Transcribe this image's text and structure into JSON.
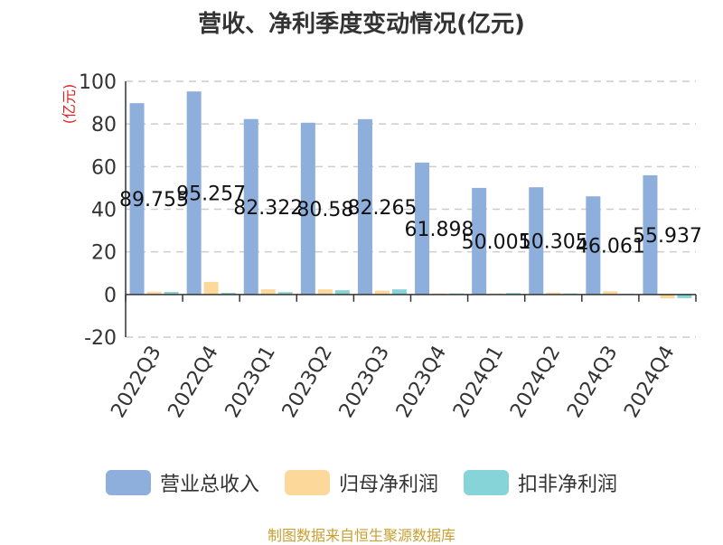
{
  "chart_data": {
    "type": "bar",
    "title": "营收、净利季度变动情况(亿元)",
    "ylabel": "(亿元)",
    "ylim": [
      -20,
      100
    ],
    "yticks": [
      100,
      80,
      60,
      40,
      20,
      0,
      -20
    ],
    "grid": true,
    "legend_position": "bottom",
    "categories": [
      "2022Q3",
      "2022Q4",
      "2023Q1",
      "2023Q2",
      "2023Q3",
      "2023Q4",
      "2024Q1",
      "2024Q2",
      "2024Q3",
      "2024Q4"
    ],
    "series": [
      {
        "name": "营业总收入",
        "color": "#8eaedc",
        "values": [
          89.755,
          95.257,
          82.322,
          80.58,
          82.265,
          61.898,
          50.001,
          50.305,
          46.061,
          55.937
        ],
        "labels": [
          "89.755",
          "95.257",
          "82.322",
          "80.58",
          "82.265",
          "61.898",
          "50.001",
          "50.305",
          "46.061",
          "55.937"
        ]
      },
      {
        "name": "归母净利润",
        "color": "#fcd89a",
        "values": [
          1.3,
          5.9,
          2.4,
          2.4,
          1.8,
          0.5,
          0.5,
          0.9,
          1.5,
          -1.8
        ]
      },
      {
        "name": "扣非净利润",
        "color": "#86d4d8",
        "values": [
          1.2,
          0.8,
          1.1,
          2.0,
          2.4,
          0.5,
          0.7,
          0.5,
          0.4,
          -1.7
        ]
      }
    ]
  },
  "source": "制图数据来自恒生聚源数据库"
}
